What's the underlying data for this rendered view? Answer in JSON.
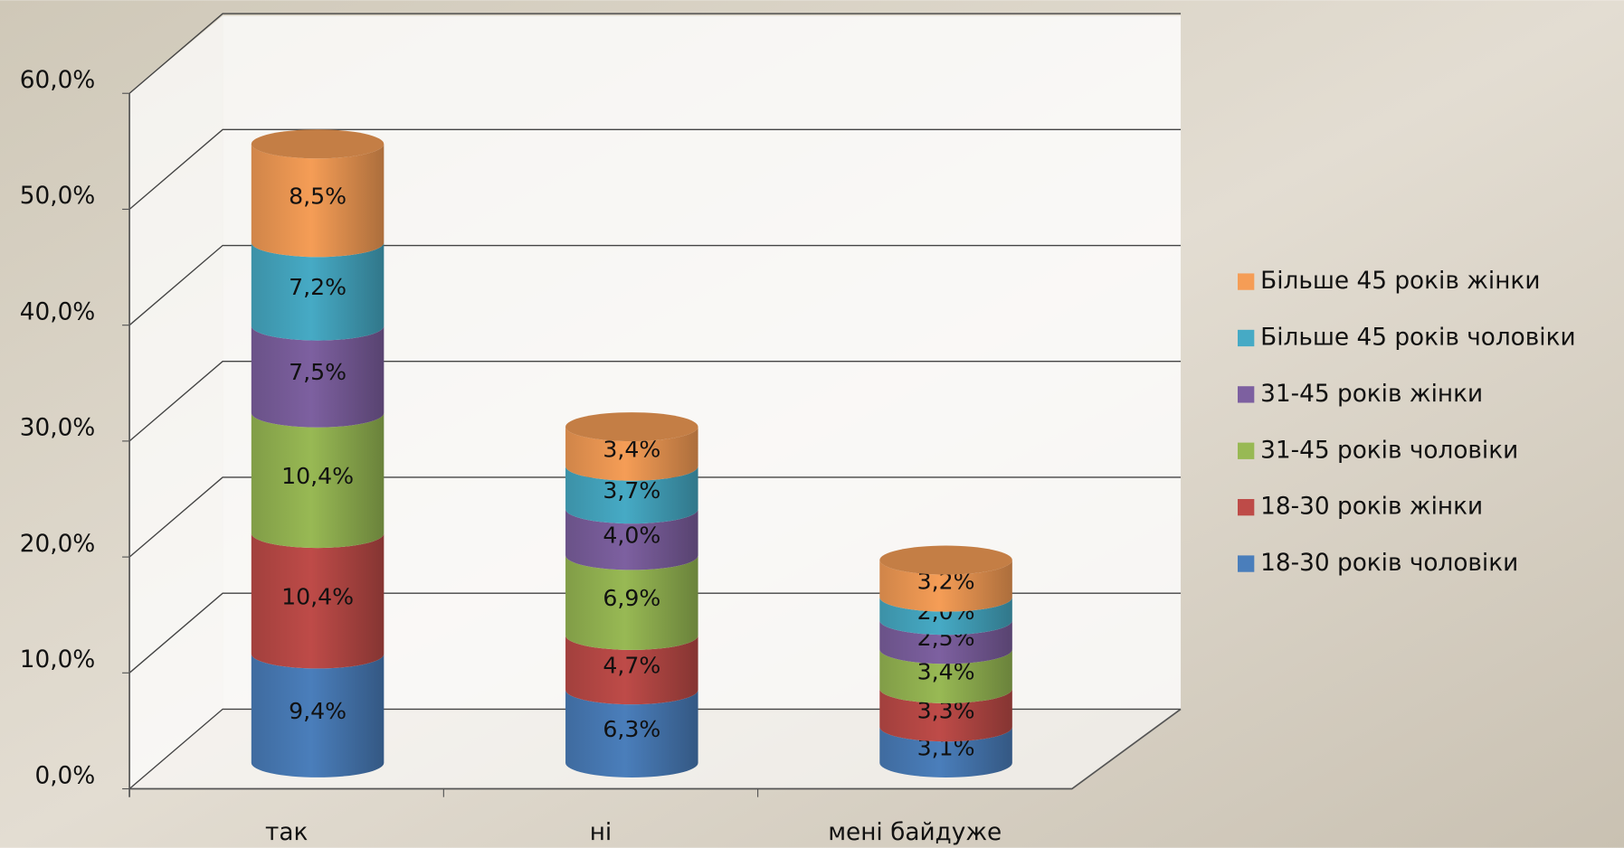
{
  "chart_data": {
    "type": "bar",
    "stacked": true,
    "categories": [
      "так",
      "ні",
      "мені байдуже"
    ],
    "series": [
      {
        "name": "18-30 років чоловіки",
        "color": "#4a7ebb",
        "values": [
          9.4,
          6.3,
          3.1
        ],
        "value_labels": [
          "9,4%",
          "6,3%",
          "3,1%"
        ]
      },
      {
        "name": "18-30 років жінки",
        "color": "#be4b48",
        "values": [
          10.4,
          4.7,
          3.3
        ],
        "value_labels": [
          "10,4%",
          "4,7%",
          "3,3%"
        ]
      },
      {
        "name": "31-45 років чоловіки",
        "color": "#98b954",
        "values": [
          10.4,
          6.9,
          3.4
        ],
        "value_labels": [
          "10,4%",
          "6,9%",
          "3,4%"
        ]
      },
      {
        "name": "31-45 років жінки",
        "color": "#7d60a0",
        "values": [
          7.5,
          4.0,
          2.5
        ],
        "value_labels": [
          "7,5%",
          "4,0%",
          "2,5%"
        ]
      },
      {
        "name": "Більше 45 років чоловіки",
        "color": "#46aac5",
        "values": [
          7.2,
          3.7,
          2.0
        ],
        "value_labels": [
          "7,2%",
          "3,7%",
          "2,0%"
        ]
      },
      {
        "name": "Більше 45 років жінки",
        "color": "#f59d56",
        "values": [
          8.5,
          3.4,
          3.2
        ],
        "value_labels": [
          "8,5%",
          "3,4%",
          "3,2%"
        ]
      }
    ],
    "ylim": [
      0,
      60
    ],
    "yticks": [
      {
        "value": 0,
        "label": "0,0%"
      },
      {
        "value": 10,
        "label": "10,0%"
      },
      {
        "value": 20,
        "label": "20,0%"
      },
      {
        "value": 30,
        "label": "30,0%"
      },
      {
        "value": 40,
        "label": "40,0%"
      },
      {
        "value": 50,
        "label": "50,0%"
      },
      {
        "value": 60,
        "label": "60,0%"
      }
    ],
    "grid": true,
    "legend": "right"
  }
}
